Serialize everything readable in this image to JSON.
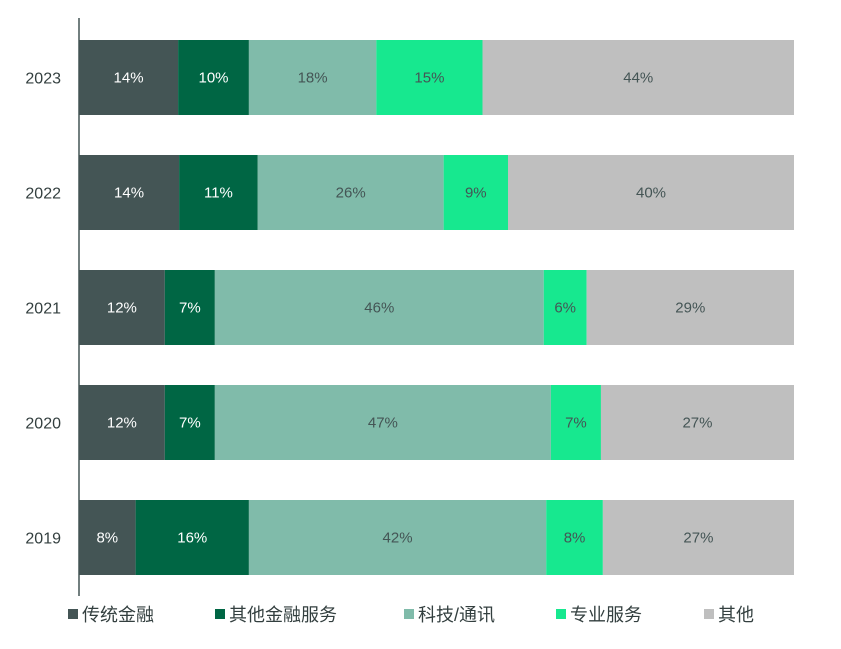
{
  "chart_data": {
    "type": "bar",
    "orientation": "horizontal",
    "stacked": true,
    "title": "",
    "xlabel": "",
    "ylabel": "",
    "xlim": [
      0,
      100
    ],
    "grid": false,
    "legend_position": "bottom",
    "categories": [
      "2023",
      "2022",
      "2021",
      "2020",
      "2019"
    ],
    "series": [
      {
        "name": "传统金融",
        "color": "#445555",
        "label_color": "#ffffff",
        "values": [
          14,
          14,
          12,
          12,
          8
        ],
        "labels": [
          "14%",
          "14%",
          "12%",
          "12%",
          "8%"
        ]
      },
      {
        "name": "其他金融服务",
        "color": "#006644",
        "label_color": "#ffffff",
        "values": [
          10,
          11,
          7,
          7,
          16
        ],
        "labels": [
          "10%",
          "11%",
          "7%",
          "7%",
          "16%"
        ]
      },
      {
        "name": "科技/通讯",
        "color": "#80bbaa",
        "label_color": "#445555",
        "values": [
          18,
          26,
          46,
          47,
          42
        ],
        "labels": [
          "18%",
          "26%",
          "46%",
          "47%",
          "42%"
        ]
      },
      {
        "name": "专业服务",
        "color": "#17e88f",
        "label_color": "#445555",
        "values": [
          15,
          9,
          6,
          7,
          8
        ],
        "labels": [
          "15%",
          "9%",
          "6%",
          "7%",
          "8%"
        ]
      },
      {
        "name": "其他",
        "color": "#bfbfbf",
        "label_color": "#445555",
        "values": [
          44,
          40,
          29,
          27,
          27
        ],
        "labels": [
          "44%",
          "40%",
          "29%",
          "27%",
          "27%"
        ]
      }
    ]
  }
}
